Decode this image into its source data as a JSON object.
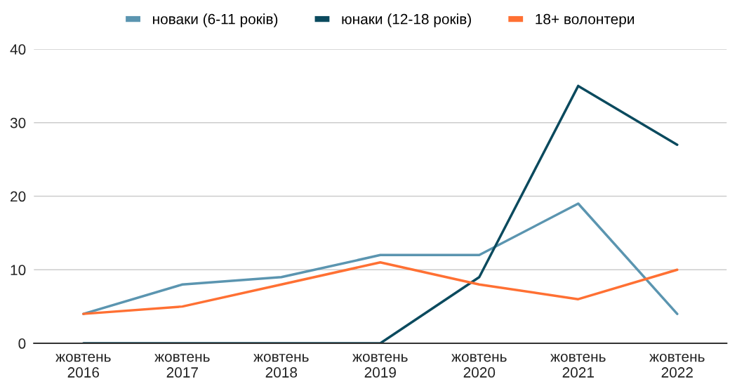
{
  "chart_data": {
    "type": "line",
    "categories": [
      "жовтень\n2016",
      "жовтень\n2017",
      "жовтень\n2018",
      "жовтень\n2019",
      "жовтень\n2020",
      "жовтень\n2021",
      "жовтень\n2022"
    ],
    "series": [
      {
        "name": "новаки (6-11 років)",
        "color": "#5b95b0",
        "values": [
          4,
          8,
          9,
          12,
          12,
          19,
          4
        ]
      },
      {
        "name": "юнаки (12-18 років)",
        "color": "#0b4a5e",
        "values": [
          0,
          0,
          0,
          0,
          9,
          35,
          27
        ]
      },
      {
        "name": "18+ волонтери",
        "color": "#ff7033",
        "values": [
          4,
          5,
          8,
          11,
          8,
          6,
          10
        ]
      }
    ],
    "ylim": [
      0,
      40
    ],
    "yticks": [
      0,
      10,
      20,
      30,
      40
    ],
    "grid": "y",
    "legend": "top",
    "marker": "none",
    "line_style": "solid"
  }
}
